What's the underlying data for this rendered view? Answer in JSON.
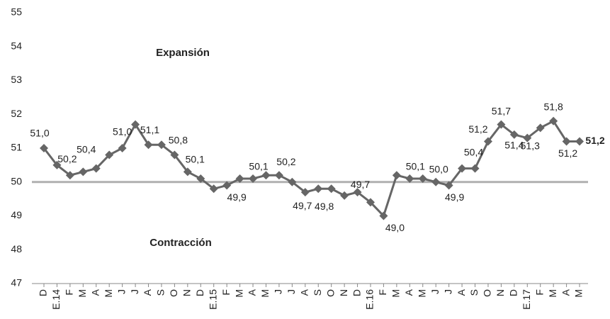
{
  "chart_data": {
    "type": "line",
    "categories": [
      "D",
      "E.14",
      "F",
      "M",
      "A",
      "M",
      "J",
      "J",
      "A",
      "S",
      "O",
      "N",
      "D",
      "E.15",
      "F",
      "M",
      "A",
      "M",
      "J",
      "J",
      "A",
      "S",
      "O",
      "N",
      "D",
      "E.16",
      "F",
      "M",
      "A",
      "M",
      "J",
      "J",
      "A",
      "S",
      "O",
      "N",
      "D",
      "E.17",
      "F",
      "M",
      "A",
      "M"
    ],
    "series": [
      {
        "color": "#666666",
        "values": [
          51.0,
          50.5,
          50.2,
          50.3,
          50.4,
          50.8,
          51.0,
          51.7,
          51.1,
          51.1,
          50.8,
          50.3,
          50.1,
          49.8,
          49.9,
          50.1,
          50.1,
          50.2,
          50.2,
          50.0,
          49.7,
          49.8,
          49.8,
          49.6,
          49.7,
          49.4,
          49.0,
          50.2,
          50.1,
          50.1,
          50.0,
          49.9,
          50.4,
          50.4,
          51.2,
          51.7,
          51.4,
          51.3,
          51.6,
          51.8,
          51.2,
          51.2
        ],
        "value_labels": [
          "51,0",
          null,
          "50,2",
          null,
          "50,4",
          null,
          "51,0",
          null,
          "51,1",
          null,
          "50,8",
          null,
          "50,1",
          null,
          "49,9",
          null,
          "50,1",
          null,
          "50,2",
          null,
          "49,7",
          null,
          "49,8",
          null,
          "49,7",
          null,
          "49,0",
          null,
          "50,1",
          null,
          "50,0",
          "49,9",
          null,
          "50,4",
          "51,2",
          "51,7",
          "51,4",
          "51,3",
          null,
          "51,8",
          "51,2",
          "51,2"
        ]
      }
    ],
    "reference_line": {
      "value": 50,
      "color": "#b0b0b0"
    },
    "annotations": [
      "Expansión",
      "Contracción"
    ],
    "ylim": [
      47,
      55
    ],
    "yticks": [
      47,
      48,
      49,
      50,
      51,
      52,
      53,
      54,
      55
    ],
    "grid": false
  }
}
